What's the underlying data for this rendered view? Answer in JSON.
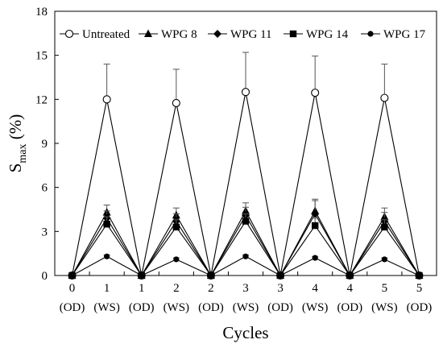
{
  "chart_data": {
    "type": "line",
    "xlabel": "Cycles",
    "ylabel": {
      "main": "S",
      "sub": "max",
      "suffix": " (%)"
    },
    "ylim": [
      0,
      18
    ],
    "yticks": [
      "0",
      "3",
      "6",
      "9",
      "12",
      "15",
      "18"
    ],
    "x_categories": [
      {
        "num": "0",
        "phase": "(OD)"
      },
      {
        "num": "1",
        "phase": "(WS)"
      },
      {
        "num": "1",
        "phase": "(OD)"
      },
      {
        "num": "2",
        "phase": "(WS)"
      },
      {
        "num": "2",
        "phase": "(OD)"
      },
      {
        "num": "3",
        "phase": "(WS)"
      },
      {
        "num": "3",
        "phase": "(OD)"
      },
      {
        "num": "4",
        "phase": "(WS)"
      },
      {
        "num": "4",
        "phase": "(OD)"
      },
      {
        "num": "5",
        "phase": "(WS)"
      },
      {
        "num": "5",
        "phase": "(OD)"
      }
    ],
    "grid": false,
    "legend_position": "top",
    "series": [
      {
        "name": "Untreated",
        "marker": "open-circle",
        "values": [
          0,
          12.0,
          0,
          11.75,
          0,
          12.5,
          0,
          12.45,
          0,
          12.1,
          0
        ],
        "errors": [
          0,
          2.4,
          0,
          2.3,
          0,
          2.7,
          0,
          2.5,
          0,
          2.3,
          0
        ]
      },
      {
        "name": "WPG 8",
        "marker": "triangle",
        "values": [
          0,
          4.3,
          0,
          4.1,
          0,
          4.4,
          0,
          4.4,
          0,
          4.0,
          0
        ],
        "errors": [
          0,
          0.5,
          0,
          0.5,
          0,
          0.55,
          0,
          0.8,
          0,
          0.6,
          0
        ]
      },
      {
        "name": "WPG 11",
        "marker": "diamond",
        "values": [
          0,
          3.9,
          0,
          3.7,
          0,
          4.1,
          0,
          4.2,
          0,
          3.7,
          0
        ],
        "errors": [
          0,
          0.5,
          0,
          0.5,
          0,
          0.55,
          0,
          0.9,
          0,
          0.6,
          0
        ]
      },
      {
        "name": "WPG 14",
        "marker": "square",
        "values": [
          0,
          3.5,
          0,
          3.3,
          0,
          3.7,
          0,
          3.4,
          0,
          3.3,
          0
        ],
        "errors": [
          0,
          0.5,
          0,
          0.5,
          0,
          0.5,
          0,
          0.5,
          0,
          0.5,
          0
        ]
      },
      {
        "name": "WPG 17",
        "marker": "filled-circle",
        "values": [
          0,
          1.3,
          0,
          1.1,
          0,
          1.3,
          0,
          1.2,
          0,
          1.1,
          0
        ],
        "errors": [
          0,
          0.1,
          0,
          0.1,
          0,
          0.1,
          0,
          0.1,
          0,
          0.1,
          0
        ]
      }
    ]
  }
}
